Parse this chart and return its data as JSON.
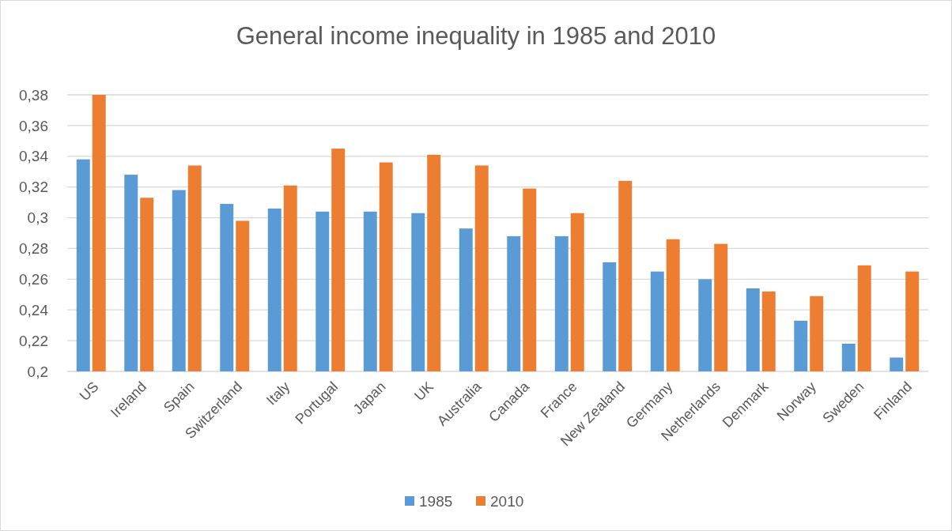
{
  "chart_data": {
    "type": "bar",
    "title": "General income inequality in 1985 and 2010",
    "categories": [
      "US",
      "Ireland",
      "Spain",
      "Switzerland",
      "Italy",
      "Portugal",
      "Japan",
      "UK",
      "Australia",
      "Canada",
      "France",
      "New Zealand",
      "Germany",
      "Netherlands",
      "Denmark",
      "Norway",
      "Sweden",
      "Finland"
    ],
    "series": [
      {
        "name": "1985",
        "color": "#5b9bd5",
        "values": [
          0.338,
          0.328,
          0.318,
          0.309,
          0.306,
          0.304,
          0.304,
          0.303,
          0.293,
          0.288,
          0.288,
          0.271,
          0.265,
          0.26,
          0.254,
          0.233,
          0.218,
          0.209
        ]
      },
      {
        "name": "2010",
        "color": "#ed7d31",
        "values": [
          0.38,
          0.313,
          0.334,
          0.298,
          0.321,
          0.345,
          0.336,
          0.341,
          0.334,
          0.319,
          0.303,
          0.324,
          0.286,
          0.283,
          0.252,
          0.249,
          0.269,
          0.265
        ]
      }
    ],
    "ylim": [
      0.2,
      0.38
    ],
    "yticks": [
      {
        "value": 0.2,
        "label": "0,2"
      },
      {
        "value": 0.22,
        "label": "0,22"
      },
      {
        "value": 0.24,
        "label": "0,24"
      },
      {
        "value": 0.26,
        "label": "0,26"
      },
      {
        "value": 0.28,
        "label": "0,28"
      },
      {
        "value": 0.3,
        "label": "0,3"
      },
      {
        "value": 0.32,
        "label": "0,32"
      },
      {
        "value": 0.34,
        "label": "0,34"
      },
      {
        "value": 0.36,
        "label": "0,36"
      },
      {
        "value": 0.38,
        "label": "0,38"
      }
    ],
    "grid": "y",
    "legend": "bottom"
  }
}
